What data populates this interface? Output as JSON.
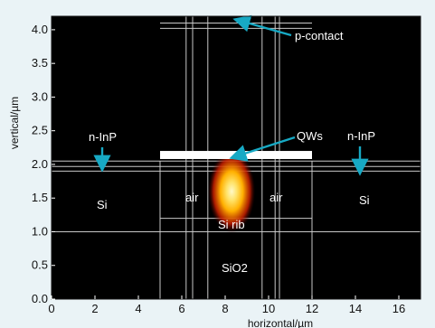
{
  "axes": {
    "xlabel": "horizontal/µm",
    "ylabel": "vertical/µm",
    "xlim": [
      0,
      17
    ],
    "ylim": [
      0,
      4.2
    ],
    "xticks": [
      {
        "v": 0,
        "label": "0"
      },
      {
        "v": 2,
        "label": "2"
      },
      {
        "v": 4,
        "label": "4"
      },
      {
        "v": 6,
        "label": "6"
      },
      {
        "v": 8,
        "label": "8"
      },
      {
        "v": 10,
        "label": "10"
      },
      {
        "v": 12,
        "label": "12"
      },
      {
        "v": 14,
        "label": "14"
      },
      {
        "v": 16,
        "label": "16"
      }
    ],
    "yticks": [
      {
        "v": 0.0,
        "label": "0.0"
      },
      {
        "v": 0.5,
        "label": "0.5"
      },
      {
        "v": 1.0,
        "label": "1.0"
      },
      {
        "v": 1.5,
        "label": "1.5"
      },
      {
        "v": 2.0,
        "label": "2.0"
      },
      {
        "v": 2.5,
        "label": "2.5"
      },
      {
        "v": 3.0,
        "label": "3.0"
      },
      {
        "v": 3.5,
        "label": "3.5"
      },
      {
        "v": 4.0,
        "label": "4.0"
      }
    ]
  },
  "regions": {
    "p_contact": "p-contact",
    "qws": "QWs",
    "n_inp_left": "n-InP",
    "n_inp_right": "n-InP",
    "si_left": "Si",
    "si_right": "Si",
    "air_left": "air",
    "air_right": "air",
    "si_rib": "Si rib",
    "sio2": "SiO2"
  },
  "structure": {
    "hlines_full": [
      1.0,
      1.9,
      1.97,
      2.05
    ],
    "hlines_center": [
      1.2,
      4.02,
      4.1
    ],
    "vlines_short": [
      5.0,
      12.0
    ],
    "vlines_tall": [
      6.2,
      6.5,
      7.2,
      9.7,
      10.3,
      10.5
    ],
    "center_x_range": [
      5.0,
      12.0
    ],
    "white_bar": {
      "x": [
        5.0,
        12.0
      ],
      "y": [
        2.08,
        2.2
      ]
    },
    "mode": {
      "cx": 8.3,
      "cy": 1.6
    }
  },
  "colors": {
    "background": "#000000",
    "grid": "#c8c8c8",
    "annotation": "#ffffff",
    "arrow": "#17a9c4",
    "mode_core": "#fff9c8",
    "mode_mid": "#ffb000",
    "mode_outer": "#c81e00"
  }
}
